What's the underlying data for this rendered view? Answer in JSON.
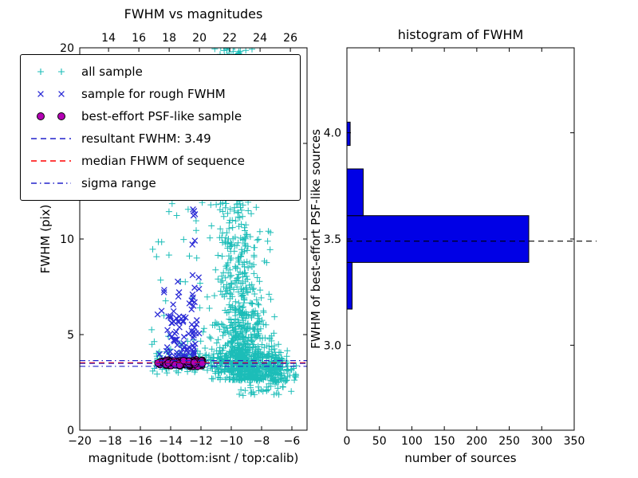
{
  "figure": {
    "background": "#ffffff"
  },
  "chart_data": [
    {
      "type": "scatter",
      "title": "FWHM vs magnitudes",
      "xlabel": "magnitude (bottom:isnt / top:calib)",
      "ylabel": "FWHM (pix)",
      "xlim": [
        -20,
        -5
      ],
      "ylim": [
        0,
        20
      ],
      "x_ticks_bottom": [
        -20,
        -18,
        -16,
        -14,
        -12,
        -10,
        -8,
        -6
      ],
      "x_ticks_top": [
        14,
        16,
        18,
        20,
        22,
        24,
        26
      ],
      "x_top_lim": [
        12.1,
        27.1
      ],
      "y_ticks": [
        0,
        5,
        10,
        15,
        20
      ],
      "seed": 42,
      "legend": [
        {
          "label": "all sample",
          "marker": "plus",
          "color": "#1cbdb8"
        },
        {
          "label": "sample for rough FWHM",
          "marker": "x",
          "color": "#2b2bd6"
        },
        {
          "label": "best-effort PSF-like sample",
          "marker": "circle",
          "color": "#b400b4"
        },
        {
          "label": "resultant FWHM: 3.49",
          "marker": "dashed-line",
          "color": "#2222cc"
        },
        {
          "label": "median FHWM of sequence",
          "marker": "dashed-line",
          "color": "#ff0000"
        },
        {
          "label": "sigma range",
          "marker": "dashdot-line",
          "color": "#2222cc"
        }
      ],
      "hlines": [
        {
          "y": 3.64,
          "color": "#2222cc",
          "style": "dashdot"
        },
        {
          "y": 3.34,
          "color": "#2222cc",
          "style": "dashdot"
        },
        {
          "y": 3.53,
          "color": "#ff0000",
          "style": "dashed"
        },
        {
          "y": 3.49,
          "color": "#2222cc",
          "style": "dashed"
        }
      ],
      "series": [
        {
          "name": "all sample",
          "marker": "plus",
          "color": "#1cbdb8",
          "clusters": [
            {
              "n": 480,
              "x": [
                "norm",
                -8.9,
                0.9
              ],
              "y": [
                "exp",
                2.6,
                1.4,
                13
              ]
            },
            {
              "n": 420,
              "x": [
                "norm",
                -9.7,
                0.75
              ],
              "y": [
                "pow",
                3.8,
                14.5,
                1.6
              ]
            },
            {
              "n": 70,
              "x": [
                "norm",
                -9.85,
                0.55
              ],
              "y": [
                "uniform",
                18.6,
                20.4
              ]
            },
            {
              "n": 260,
              "x": [
                "uniform",
                -15.2,
                -6.3
              ],
              "y": [
                "norm",
                3.5,
                0.28
              ]
            },
            {
              "n": 80,
              "x": [
                "uniform",
                -7.7,
                -5.7
              ],
              "y": [
                "norm",
                3.1,
                0.5
              ]
            },
            {
              "n": 45,
              "x": [
                "norm",
                -8.2,
                0.9
              ],
              "y": [
                "uniform",
                1.8,
                3.0
              ]
            },
            {
              "n": 40,
              "x": [
                "uniform",
                -15.3,
                -11.5
              ],
              "y": [
                "pow",
                4.0,
                12.0,
                2.0
              ]
            },
            {
              "n": 60,
              "x": [
                "norm",
                -9.3,
                1.2
              ],
              "y": [
                "uniform",
                14.0,
                18.6
              ]
            }
          ]
        },
        {
          "name": "sample for rough FWHM",
          "marker": "x",
          "color": "#2b2bd6",
          "clusters": [
            {
              "n": 105,
              "x": [
                "norm",
                -13.35,
                0.6
              ],
              "y": [
                "exp",
                3.35,
                1.2,
                9.5
              ]
            },
            {
              "n": 26,
              "x": [
                "norm",
                -12.45,
                0.13
              ],
              "y": [
                "uniform",
                3.6,
                11.6
              ]
            },
            {
              "n": 7,
              "x": [
                "uniform",
                -14.9,
                -13.6
              ],
              "y": [
                "uniform",
                5.2,
                7.6
              ]
            }
          ]
        },
        {
          "name": "best-effort PSF-like sample",
          "marker": "circle",
          "color": "#b400b4",
          "clusters": [
            {
              "n": 130,
              "x": [
                "uniform",
                -14.85,
                -11.9
              ],
              "y": [
                "norm",
                3.51,
                0.08
              ]
            }
          ]
        }
      ]
    },
    {
      "type": "bar",
      "orientation": "horizontal",
      "title": "histogram of FWHM",
      "xlabel": "number of sources",
      "ylabel": "FWHM of best-effort PSF-like sources",
      "xlim": [
        0,
        350
      ],
      "ylim": [
        2.6,
        4.4
      ],
      "x_ticks": [
        0,
        50,
        100,
        150,
        200,
        250,
        300,
        350
      ],
      "y_ticks": [
        3.0,
        3.5,
        4.0
      ],
      "bar_color": "#0000e6",
      "bar_edge": "#000000",
      "bins": [
        {
          "fwhm_from": 3.17,
          "fwhm_to": 3.39,
          "count": 8
        },
        {
          "fwhm_from": 3.39,
          "fwhm_to": 3.61,
          "count": 280
        },
        {
          "fwhm_from": 3.61,
          "fwhm_to": 3.83,
          "count": 25
        },
        {
          "fwhm_from": 3.94,
          "fwhm_to": 4.05,
          "count": 5
        }
      ],
      "median_line": {
        "y": 3.49,
        "color": "#000000",
        "style": "dashed"
      }
    }
  ]
}
